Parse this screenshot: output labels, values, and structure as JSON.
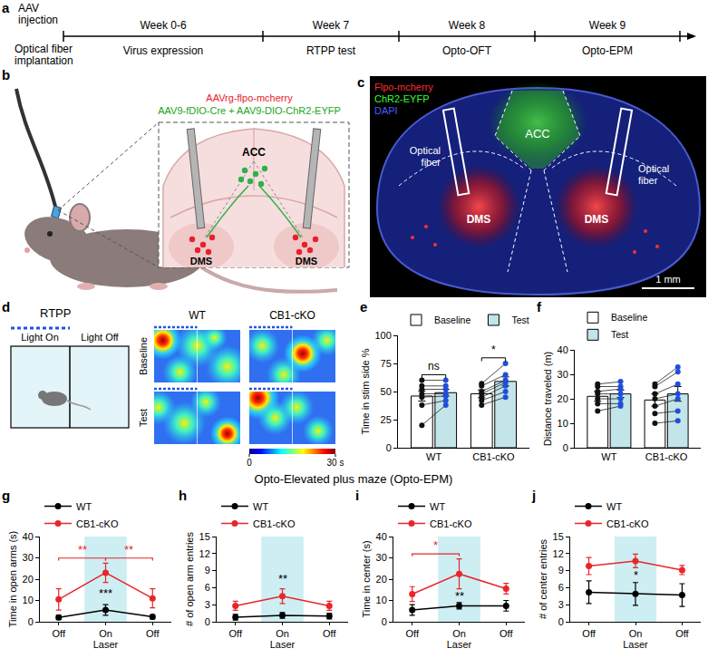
{
  "panels": {
    "a": {
      "letter": "a",
      "left_top": "AAV injection",
      "left_bottom": "Optical fiber implantation",
      "stages": [
        {
          "week": "Week 0-6",
          "event": "Virus expression"
        },
        {
          "week": "Week 7",
          "event": "RTPP test"
        },
        {
          "week": "Week 8",
          "event": "Opto-OFT"
        },
        {
          "week": "Week 9",
          "event": "Opto-EPM"
        }
      ]
    },
    "b": {
      "letter": "b",
      "viruses": [
        {
          "text": "AAVrg-flpo-mcherry",
          "color": "#e8202a"
        },
        {
          "text": "AAV9-fDIO-Cre + AAV9-DIO-ChR2-EYFP",
          "color": "#1aa51a"
        }
      ],
      "top_region": "ACC",
      "bottom_region": "DMS"
    },
    "c": {
      "letter": "c",
      "channels": [
        {
          "text": "Flpo-mcherry",
          "color": "#ff2a2a"
        },
        {
          "text": "ChR2-EYFP",
          "color": "#33ff33"
        },
        {
          "text": "DAPI",
          "color": "#4a5cff"
        }
      ],
      "top_region": "ACC",
      "bottom_region": "DMS",
      "fiber": "Optical fiber",
      "scale_bar": "1 mm"
    },
    "d": {
      "letter": "d",
      "title": "RTPP",
      "zones": [
        "Light On",
        "Light Off"
      ],
      "columns": [
        "WT",
        "CB1-cKO"
      ],
      "rows": [
        "Baseline",
        "Test"
      ],
      "colorbar": {
        "range": [
          0,
          30
        ],
        "ticks": [
          0,
          {
            "value": 30,
            "label": "30 s"
          }
        ]
      }
    }
  },
  "section_title": "Opto-Elevated plus maze (Opto-EPM)",
  "chart_data": [
    {
      "letter": "e",
      "type": "bar",
      "categories": [
        "WT",
        "CB1-cKO"
      ],
      "y_label": "Time in stim side %",
      "ylim": [
        0,
        100
      ],
      "yticks": [
        0,
        25,
        50,
        75,
        100
      ],
      "grid": false,
      "legend": "top",
      "series": [
        {
          "name": "Baseline",
          "color": "#ffffff",
          "values": [
            46,
            48
          ],
          "error": [
            4.5,
            3.5
          ],
          "points": [
            [
              20,
              38,
              45,
              48,
              52,
              55,
              60
            ],
            [
              38,
              42,
              45,
              48,
              50,
              55,
              57
            ]
          ]
        },
        {
          "name": "Test",
          "color": "#c3e4e9",
          "values": [
            49,
            59
          ],
          "error": [
            3,
            4
          ],
          "points": [
            [
              38,
              42,
              46,
              48,
              52,
              55,
              60
            ],
            [
              45,
              50,
              55,
              58,
              60,
              65,
              75
            ]
          ]
        }
      ],
      "annotations": [
        {
          "category": "WT",
          "text": "ns"
        },
        {
          "category": "CB1-cKO",
          "text": "*"
        }
      ]
    },
    {
      "letter": "f",
      "type": "bar",
      "categories": [
        "WT",
        "CB1-cKO"
      ],
      "y_label": "Distance traveled (m)",
      "ylim": [
        0,
        40
      ],
      "yticks": [
        0,
        10,
        20,
        30,
        40
      ],
      "grid": false,
      "legend": "top",
      "series": [
        {
          "name": "Baseline",
          "color": "#ffffff",
          "values": [
            21,
            19.5
          ],
          "error": [
            2,
            2.5
          ],
          "points": [
            [
              15,
              18,
              20,
              22,
              23,
              25,
              26
            ],
            [
              10,
              14,
              17,
              20,
              22,
              25,
              26
            ]
          ]
        },
        {
          "name": "Test",
          "color": "#c3e4e9",
          "values": [
            22,
            22
          ],
          "error": [
            1.5,
            3
          ],
          "points": [
            [
              17,
              18,
              20,
              22,
              24,
              25,
              27
            ],
            [
              11,
              15,
              20,
              22,
              26,
              31,
              33
            ]
          ]
        }
      ],
      "annotations": []
    },
    {
      "letter": "g",
      "type": "line",
      "categories": [
        "Off",
        "On",
        "Off"
      ],
      "x_label": "Laser",
      "y_label": "Time in open arms (s)",
      "ylim": [
        0,
        40
      ],
      "yticks": [
        0,
        10,
        20,
        30,
        40
      ],
      "grid": false,
      "legend": "top left",
      "series": [
        {
          "name": "WT",
          "color": "#000000",
          "values": [
            2,
            5.5,
            2.3
          ],
          "error": [
            1,
            2.5,
            1
          ]
        },
        {
          "name": "CB1-cKO",
          "color": "#e8262a",
          "values": [
            10.5,
            23,
            11
          ],
          "error": [
            5,
            4.5,
            4.5
          ]
        }
      ],
      "annotations": [
        {
          "text": "**",
          "from": 0,
          "to": 1,
          "color": "#e8262a"
        },
        {
          "text": "**",
          "from": 1,
          "to": 2,
          "color": "#e8262a"
        },
        {
          "text": "***",
          "at": 1,
          "color": "#000000"
        }
      ]
    },
    {
      "letter": "h",
      "type": "line",
      "categories": [
        "Off",
        "On",
        "Off"
      ],
      "x_label": "Laser",
      "y_label": "# of open arm entries",
      "ylim": [
        0,
        15
      ],
      "yticks": [
        0,
        3,
        6,
        9,
        12,
        15
      ],
      "grid": false,
      "legend": "top left",
      "series": [
        {
          "name": "WT",
          "color": "#000000",
          "values": [
            0.8,
            1.1,
            1.0
          ],
          "error": [
            0.5,
            0.5,
            0.5
          ]
        },
        {
          "name": "CB1-cKO",
          "color": "#e8262a",
          "values": [
            2.8,
            4.5,
            2.8
          ],
          "error": [
            0.8,
            1.3,
            0.8
          ]
        }
      ],
      "annotations": [
        {
          "text": "**",
          "at": 1,
          "color": "#000000"
        }
      ]
    },
    {
      "letter": "i",
      "type": "line",
      "categories": [
        "Off",
        "On",
        "Off"
      ],
      "x_label": "Laser",
      "y_label": "Time in center (s)",
      "ylim": [
        0,
        40
      ],
      "yticks": [
        0,
        10,
        20,
        30,
        40
      ],
      "grid": false,
      "legend": "top left",
      "series": [
        {
          "name": "WT",
          "color": "#000000",
          "values": [
            5.5,
            7.5,
            7.5
          ],
          "error": [
            2.5,
            1.5,
            2.5
          ]
        },
        {
          "name": "CB1-cKO",
          "color": "#e8262a",
          "values": [
            13,
            22.5,
            15.5
          ],
          "error": [
            3.5,
            7,
            2.5
          ]
        }
      ],
      "annotations": [
        {
          "text": "*",
          "from": 0,
          "to": 1,
          "color": "#e8262a"
        },
        {
          "text": "**",
          "at": 1,
          "color": "#000000"
        }
      ]
    },
    {
      "letter": "j",
      "type": "line",
      "categories": [
        "Off",
        "On",
        "Off"
      ],
      "x_label": "Laser",
      "y_label": "# of center entries",
      "ylim": [
        0,
        15
      ],
      "yticks": [
        0,
        3,
        6,
        9,
        12,
        15
      ],
      "grid": false,
      "legend": "top left",
      "series": [
        {
          "name": "WT",
          "color": "#000000",
          "values": [
            5.2,
            4.9,
            4.7
          ],
          "error": [
            2,
            2,
            2
          ]
        },
        {
          "name": "CB1-cKO",
          "color": "#e8262a",
          "values": [
            9.8,
            10.7,
            9.1
          ],
          "error": [
            1.5,
            1.2,
            0.8
          ]
        }
      ],
      "annotations": [
        {
          "text": "*",
          "at": 1,
          "color": "#000000"
        }
      ]
    }
  ]
}
